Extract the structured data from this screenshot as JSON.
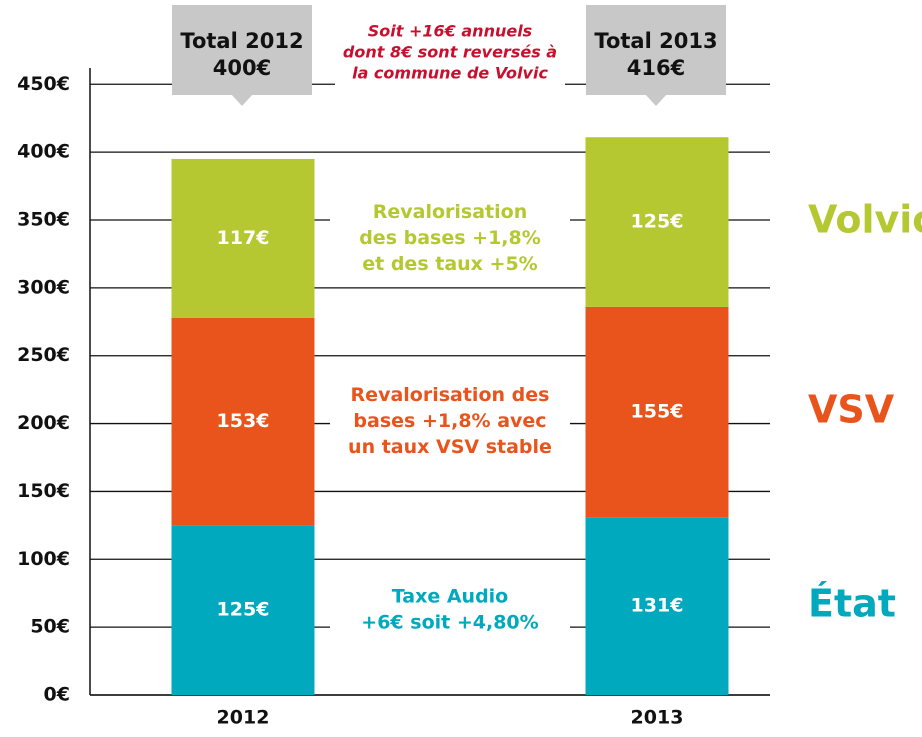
{
  "chart_data": {
    "type": "stacked_bar",
    "categories": [
      "2012",
      "2013"
    ],
    "series": [
      {
        "name": "État",
        "color": "#00a9bd",
        "values": [
          125,
          131
        ],
        "value_labels": [
          "125€",
          "131€"
        ]
      },
      {
        "name": "VSV",
        "color": "#e8541c",
        "values": [
          153,
          155
        ],
        "value_labels": [
          "153€",
          "155€"
        ]
      },
      {
        "name": "Volvic",
        "color": "#b5c832",
        "values": [
          117,
          125
        ],
        "value_labels": [
          "117€",
          "125€"
        ]
      }
    ],
    "ylim": [
      0,
      462
    ],
    "yticks": [
      {
        "value": 0,
        "label": "0€"
      },
      {
        "value": 50,
        "label": "50€"
      },
      {
        "value": 100,
        "label": "100€"
      },
      {
        "value": 150,
        "label": "150€"
      },
      {
        "value": 200,
        "label": "200€"
      },
      {
        "value": 250,
        "label": "250€"
      },
      {
        "value": 300,
        "label": "300€"
      },
      {
        "value": 350,
        "label": "350€"
      },
      {
        "value": 400,
        "label": "400€"
      },
      {
        "value": 450,
        "label": "450€"
      }
    ],
    "grid": true,
    "totals": [
      [
        "Total 2012",
        "400€"
      ],
      [
        "Total 2013",
        "416€"
      ]
    ],
    "annotation": {
      "lines": [
        "Soit +16€ annuels",
        "dont 8€ sont reversés à",
        "la commune de Volvic"
      ],
      "color": "#c8102e"
    },
    "notes": [
      {
        "lines": [
          "Taxe Audio",
          "+6€ soit +4,80%"
        ],
        "color": "#00a9bd"
      },
      {
        "lines": [
          "Revalorisation des",
          "bases +1,8% avec",
          "un taux VSV stable"
        ],
        "color": "#e8541c"
      },
      {
        "lines": [
          "Revalorisation",
          "des bases +1,8%",
          "et des taux +5%"
        ],
        "color": "#b5c832"
      }
    ]
  }
}
